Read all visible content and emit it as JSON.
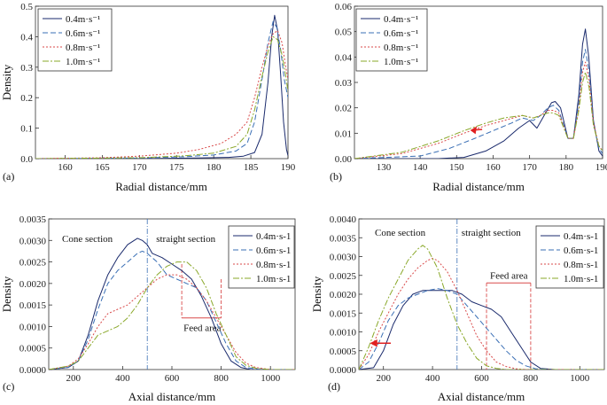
{
  "series_styles": [
    {
      "color": "#1a2a6c",
      "dash": ""
    },
    {
      "color": "#3a6fb5",
      "dash": "6,3"
    },
    {
      "color": "#d94a4a",
      "dash": "2,2"
    },
    {
      "color": "#8aa82a",
      "dash": "7,2,2,2"
    }
  ],
  "chart_data": [
    {
      "type": "line",
      "panel_label": "(a)",
      "xlabel": "Radial distance/mm",
      "ylabel": "Density",
      "xlim": [
        156,
        190
      ],
      "ylim": [
        0,
        0.5
      ],
      "xticks": [
        160,
        165,
        170,
        175,
        180,
        185,
        190
      ],
      "yticks": [
        0.0,
        0.1,
        0.2,
        0.3,
        0.4,
        0.5
      ],
      "ytick_labels": [
        "0.0",
        "0.1",
        "0.2",
        "0.3",
        "0.4",
        "0.5"
      ],
      "legend_position": "top-left",
      "series": [
        {
          "name": "0.4m·s⁻¹",
          "x": [
            156,
            170,
            178,
            182,
            184,
            185.5,
            186.5,
            187.3,
            187.8,
            188.2,
            188.6,
            189.0,
            189.4,
            189.8,
            190
          ],
          "y": [
            0,
            0,
            0.002,
            0.004,
            0.008,
            0.02,
            0.08,
            0.25,
            0.4,
            0.47,
            0.42,
            0.28,
            0.12,
            0.03,
            0.01
          ]
        },
        {
          "name": "0.6m·s⁻¹",
          "x": [
            156,
            170,
            176,
            180,
            183,
            184.5,
            185.5,
            186.5,
            187.3,
            188.0,
            188.5,
            189.0,
            189.5,
            190
          ],
          "y": [
            0,
            0.002,
            0.006,
            0.012,
            0.025,
            0.05,
            0.12,
            0.26,
            0.38,
            0.45,
            0.43,
            0.36,
            0.26,
            0.2
          ]
        },
        {
          "name": "0.8m·s⁻¹",
          "x": [
            156,
            165,
            170,
            175,
            178,
            181,
            183,
            184.5,
            185.5,
            186.5,
            187.3,
            188.0,
            188.6,
            189.2,
            189.7,
            190
          ],
          "y": [
            0,
            0.003,
            0.008,
            0.018,
            0.03,
            0.05,
            0.08,
            0.12,
            0.2,
            0.3,
            0.37,
            0.41,
            0.42,
            0.38,
            0.3,
            0.26
          ]
        },
        {
          "name": "1.0m·s⁻¹",
          "x": [
            156,
            170,
            176,
            180,
            183,
            184.5,
            185.5,
            186.5,
            187.3,
            188.0,
            188.6,
            189.2,
            189.7,
            190
          ],
          "y": [
            0,
            0.003,
            0.009,
            0.018,
            0.04,
            0.08,
            0.16,
            0.27,
            0.35,
            0.4,
            0.39,
            0.34,
            0.27,
            0.22
          ]
        }
      ]
    },
    {
      "type": "line",
      "panel_label": "(b)",
      "xlabel": "Radial distance/mm",
      "ylabel": "",
      "xlim": [
        122,
        190
      ],
      "ylim": [
        0,
        0.06
      ],
      "xticks": [
        130,
        140,
        150,
        160,
        170,
        180,
        190
      ],
      "yticks": [
        0,
        0.01,
        0.02,
        0.03,
        0.04,
        0.05,
        0.06
      ],
      "ytick_labels": [
        "0.00",
        "0.01",
        "0.02",
        "0.03",
        "0.04",
        "0.05",
        "0.06"
      ],
      "legend_position": "top-left",
      "series": [
        {
          "name": "0.4m·s⁻¹",
          "x": [
            122,
            145,
            152,
            158,
            163,
            167,
            170,
            172,
            174,
            176,
            177,
            178.5,
            180.5,
            182,
            183.5,
            184.5,
            185.3,
            186.2,
            187.5,
            189,
            190
          ],
          "y": [
            0,
            0,
            0.0005,
            0.003,
            0.007,
            0.012,
            0.015,
            0.012,
            0.017,
            0.022,
            0.0225,
            0.02,
            0.008,
            0.008,
            0.025,
            0.045,
            0.051,
            0.04,
            0.015,
            0.003,
            0.001
          ]
        },
        {
          "name": "0.6m·s⁻¹",
          "x": [
            122,
            140,
            148,
            155,
            160,
            165,
            168,
            171,
            173,
            175,
            176.5,
            178,
            180.5,
            182,
            183.5,
            184.5,
            185.3,
            186.3,
            187.5,
            189,
            190
          ],
          "y": [
            0,
            0.001,
            0.004,
            0.008,
            0.011,
            0.014,
            0.016,
            0.015,
            0.017,
            0.02,
            0.021,
            0.019,
            0.008,
            0.008,
            0.022,
            0.038,
            0.043,
            0.034,
            0.014,
            0.004,
            0.002
          ]
        },
        {
          "name": "0.8m·s⁻¹",
          "x": [
            122,
            135,
            145,
            152,
            158,
            163,
            168,
            171,
            173,
            175,
            176.5,
            178,
            180.5,
            182,
            183.5,
            184.5,
            185.3,
            186.3,
            187.5,
            189,
            190
          ],
          "y": [
            0,
            0.002,
            0.006,
            0.01,
            0.013,
            0.015,
            0.017,
            0.016,
            0.017,
            0.019,
            0.019,
            0.018,
            0.008,
            0.008,
            0.02,
            0.034,
            0.038,
            0.031,
            0.014,
            0.005,
            0.003
          ]
        },
        {
          "name": "1.0m·s⁻¹",
          "x": [
            122,
            135,
            145,
            152,
            158,
            163,
            168,
            171,
            173,
            175,
            176.5,
            178,
            180.5,
            182,
            183.5,
            184.5,
            185.3,
            186.3,
            187.5,
            189,
            190
          ],
          "y": [
            0,
            0.0025,
            0.007,
            0.011,
            0.014,
            0.016,
            0.017,
            0.016,
            0.017,
            0.018,
            0.018,
            0.017,
            0.008,
            0.008,
            0.019,
            0.03,
            0.034,
            0.028,
            0.013,
            0.005,
            0.003
          ]
        }
      ]
    },
    {
      "type": "line",
      "panel_label": "(c)",
      "xlabel": "Axial distance/mm",
      "ylabel": "Density",
      "xlim": [
        100,
        1100
      ],
      "ylim": [
        0,
        0.0035
      ],
      "xticks": [
        200,
        400,
        600,
        800,
        1000
      ],
      "yticks": [
        0,
        0.0005,
        0.001,
        0.0015,
        0.002,
        0.0025,
        0.003,
        0.0035
      ],
      "ytick_labels": [
        "0.0000",
        "0.0005",
        "0.0010",
        "0.0015",
        "0.0020",
        "0.0025",
        "0.0030",
        "0.0035"
      ],
      "legend_position": "top-right",
      "annotations": {
        "cone": "Cone section",
        "straight": "straight section",
        "feed": "Feed area"
      },
      "series": [
        {
          "name": "0.4m·s-1",
          "x": [
            100,
            180,
            220,
            260,
            300,
            340,
            380,
            420,
            460,
            480,
            500,
            520,
            560,
            600,
            640,
            680,
            720,
            760,
            800,
            840,
            880,
            920,
            960,
            1000,
            1050,
            1100
          ],
          "y": [
            0,
            5e-05,
            0.0002,
            0.0008,
            0.0016,
            0.0022,
            0.0026,
            0.0029,
            0.00305,
            0.003,
            0.0029,
            0.0027,
            0.0026,
            0.00245,
            0.0023,
            0.0021,
            0.0017,
            0.0012,
            0.0006,
            0.0002,
            5e-05,
            0,
            0,
            0,
            0,
            0
          ]
        },
        {
          "name": "0.6m·s-1",
          "x": [
            100,
            180,
            220,
            260,
            300,
            340,
            380,
            420,
            460,
            480,
            500,
            540,
            580,
            620,
            660,
            700,
            740,
            780,
            820,
            860,
            900,
            960,
            1100
          ],
          "y": [
            0,
            5e-05,
            0.0002,
            0.0007,
            0.0014,
            0.002,
            0.0023,
            0.0025,
            0.0027,
            0.00275,
            0.0027,
            0.0025,
            0.0022,
            0.0021,
            0.002,
            0.0019,
            0.0016,
            0.0011,
            0.0006,
            0.0002,
            5e-05,
            0,
            0
          ]
        },
        {
          "name": "0.8m·s-1",
          "x": [
            100,
            180,
            220,
            260,
            300,
            340,
            380,
            420,
            460,
            500,
            540,
            580,
            620,
            660,
            700,
            740,
            780,
            820,
            860,
            900,
            940,
            1000,
            1100
          ],
          "y": [
            0,
            8e-05,
            0.00025,
            0.0006,
            0.001,
            0.0013,
            0.0014,
            0.0015,
            0.0017,
            0.0019,
            0.0021,
            0.0022,
            0.0022,
            0.0021,
            0.0019,
            0.0016,
            0.0012,
            0.0008,
            0.0004,
            0.00015,
            5e-05,
            0,
            0
          ]
        },
        {
          "name": "1.0m·s-1",
          "x": [
            100,
            180,
            220,
            260,
            300,
            340,
            380,
            420,
            460,
            500,
            540,
            580,
            620,
            660,
            700,
            740,
            780,
            820,
            860,
            900,
            940,
            1000,
            1100
          ],
          "y": [
            0,
            8e-05,
            0.0002,
            0.0005,
            0.0008,
            0.0009,
            0.001,
            0.0012,
            0.0015,
            0.0019,
            0.0022,
            0.0024,
            0.0025,
            0.0025,
            0.0023,
            0.0019,
            0.0013,
            0.0008,
            0.0003,
            0.0001,
            3e-05,
            0,
            0
          ]
        }
      ]
    },
    {
      "type": "line",
      "panel_label": "(d)",
      "xlabel": "Axial distance/mm",
      "ylabel": "Density",
      "xlim": [
        100,
        1100
      ],
      "ylim": [
        0,
        0.004
      ],
      "xticks": [
        200,
        400,
        600,
        800,
        1000
      ],
      "yticks": [
        0,
        0.0005,
        0.001,
        0.0015,
        0.002,
        0.0025,
        0.003,
        0.0035,
        0.004
      ],
      "ytick_labels": [
        "0.0000",
        "0.0005",
        "0.0010",
        "0.0015",
        "0.0020",
        "0.0025",
        "0.0030",
        "0.0035",
        "0.0040"
      ],
      "legend_position": "top-right",
      "annotations": {
        "cone": "Cone section",
        "straight": "straight section",
        "feed": "Feed area"
      },
      "series": [
        {
          "name": "0.4m·s-1",
          "x": [
            100,
            160,
            200,
            240,
            280,
            320,
            360,
            400,
            440,
            480,
            520,
            560,
            600,
            640,
            680,
            720,
            760,
            800,
            840,
            900,
            1100
          ],
          "y": [
            0,
            5e-05,
            0.0005,
            0.0012,
            0.0017,
            0.002,
            0.0021,
            0.0021,
            0.0021,
            0.0021,
            0.002,
            0.0018,
            0.0017,
            0.0016,
            0.0014,
            0.001,
            0.0006,
            0.0002,
            3e-05,
            0,
            0
          ]
        },
        {
          "name": "0.6m·s-1",
          "x": [
            100,
            140,
            180,
            220,
            260,
            300,
            340,
            380,
            420,
            460,
            500,
            540,
            580,
            620,
            660,
            700,
            740,
            780,
            820,
            880,
            1100
          ],
          "y": [
            0,
            0.0002,
            0.0007,
            0.0013,
            0.0017,
            0.0019,
            0.002,
            0.0021,
            0.00215,
            0.0021,
            0.002,
            0.0017,
            0.0014,
            0.0011,
            0.0008,
            0.0005,
            0.00025,
            0.0001,
            2e-05,
            0,
            0
          ]
        },
        {
          "name": "0.8m·s-1",
          "x": [
            100,
            140,
            180,
            220,
            260,
            300,
            340,
            380,
            400,
            420,
            460,
            500,
            540,
            580,
            620,
            660,
            700,
            740,
            780,
            840,
            1100
          ],
          "y": [
            0,
            0.0004,
            0.001,
            0.0015,
            0.002,
            0.0024,
            0.0027,
            0.0029,
            0.00295,
            0.0029,
            0.0026,
            0.0021,
            0.0015,
            0.0009,
            0.0005,
            0.0002,
            8e-05,
            2e-05,
            0,
            0,
            0
          ]
        },
        {
          "name": "1.0m·s-1",
          "x": [
            100,
            140,
            180,
            220,
            260,
            300,
            340,
            360,
            380,
            420,
            460,
            500,
            540,
            580,
            620,
            660,
            700,
            760,
            1100
          ],
          "y": [
            0,
            0.0006,
            0.0013,
            0.0019,
            0.0024,
            0.0029,
            0.0032,
            0.0033,
            0.0032,
            0.0027,
            0.0019,
            0.0012,
            0.0007,
            0.0003,
            0.0001,
            3e-05,
            0,
            0,
            0
          ]
        }
      ]
    }
  ]
}
